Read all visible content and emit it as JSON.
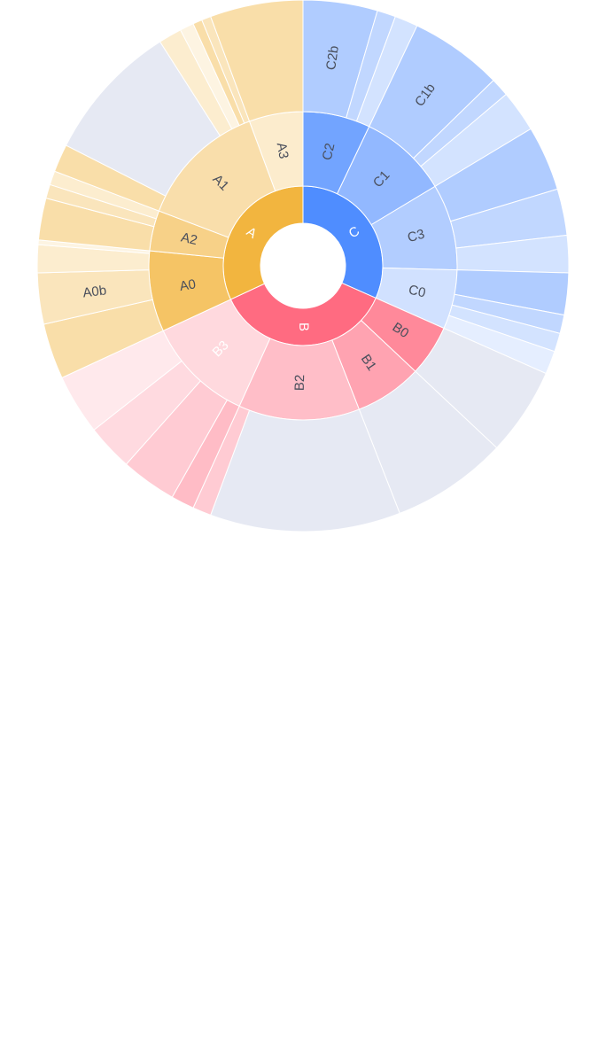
{
  "chart_data": {
    "type": "sunburst",
    "title": "",
    "colors": {
      "A": "#f2b53f",
      "B": "#ff6b81",
      "C": "#4f8dff",
      "center_hole": "#ffffff",
      "placeholder": "#e6e9f3"
    },
    "children": [
      {
        "name": "A",
        "value": 113,
        "children": [
          {
            "name": "A0",
            "value": 30,
            "children": [
              {
                "name": "",
                "value": 12,
                "label": false
              },
              {
                "name": "A0b",
                "value": 11
              },
              {
                "name": "",
                "value": 6,
                "label": false
              },
              {
                "name": "",
                "value": 1,
                "label": false
              }
            ]
          },
          {
            "name": "A2",
            "value": 15,
            "children": [
              {
                "name": "",
                "value": 9,
                "label": false
              },
              {
                "name": "",
                "value": 3,
                "label": false
              },
              {
                "name": "",
                "value": 3,
                "label": false
              }
            ]
          },
          {
            "name": "A1",
            "value": 48,
            "children": [
              {
                "name": "",
                "value": 6,
                "label": false
              },
              {
                "name": "",
                "value": 30,
                "placeholder": true,
                "label": false
              },
              {
                "name": "",
                "value": 5,
                "label": false
              },
              {
                "name": "",
                "value": 3,
                "label": false
              },
              {
                "name": "",
                "value": 2,
                "label": false
              },
              {
                "name": "",
                "value": 2,
                "label": false
              }
            ]
          },
          {
            "name": "A3",
            "value": 20,
            "children": [
              {
                "name": "",
                "value": 20,
                "label": false
              }
            ]
          }
        ]
      },
      {
        "name": "B",
        "value": 129,
        "children": [
          {
            "name": "B0",
            "value": 19,
            "children": [
              {
                "name": "",
                "value": 19,
                "placeholder": true,
                "label": false
              }
            ]
          },
          {
            "name": "B1",
            "value": 25,
            "children": [
              {
                "name": "",
                "value": 25,
                "placeholder": true,
                "label": false
              }
            ]
          },
          {
            "name": "B2",
            "value": 45,
            "children": [
              {
                "name": "",
                "value": 41,
                "placeholder": true,
                "label": false
              },
              {
                "name": "",
                "value": 4,
                "label": false
              }
            ]
          },
          {
            "name": "B3",
            "value": 40,
            "children": [
              {
                "name": "",
                "value": 5,
                "label": false
              },
              {
                "name": "",
                "value": 12,
                "label": false
              },
              {
                "name": "",
                "value": 10,
                "label": false
              },
              {
                "name": "",
                "value": 13,
                "label": false
              }
            ]
          }
        ]
      },
      {
        "name": "C",
        "value": 112,
        "children": [
          {
            "name": "C2",
            "value": 25,
            "children": [
              {
                "name": "C2b",
                "value": 16
              },
              {
                "name": "",
                "value": 4,
                "label": false
              },
              {
                "name": "",
                "value": 5,
                "label": false
              }
            ]
          },
          {
            "name": "C1",
            "value": 33,
            "children": [
              {
                "name": "C1b",
                "value": 20
              },
              {
                "name": "",
                "value": 4,
                "label": false
              },
              {
                "name": "",
                "value": 9,
                "label": false
              }
            ]
          },
          {
            "name": "C3",
            "value": 32,
            "children": [
              {
                "name": "",
                "value": 14,
                "label": false
              },
              {
                "name": "",
                "value": 10,
                "label": false
              },
              {
                "name": "",
                "value": 8,
                "label": false
              }
            ]
          },
          {
            "name": "C0",
            "value": 22,
            "children": [
              {
                "name": "",
                "value": 9,
                "label": false
              },
              {
                "name": "",
                "value": 4,
                "label": false
              },
              {
                "name": "",
                "value": 4,
                "label": false
              },
              {
                "name": "",
                "value": 5,
                "label": false
              }
            ]
          }
        ]
      }
    ]
  }
}
